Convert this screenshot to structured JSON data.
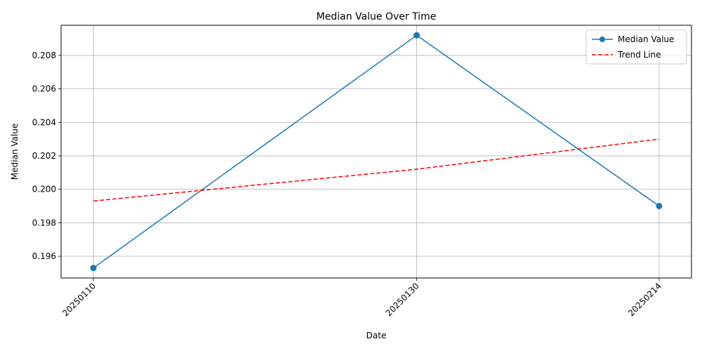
{
  "chart_data": {
    "type": "line",
    "title": "Median Value Over Time",
    "xlabel": "Date",
    "ylabel": "Median Value",
    "x": [
      "20250110",
      "20250130",
      "20250214"
    ],
    "x_days": [
      10,
      30,
      45
    ],
    "xlim_days": [
      8,
      47
    ],
    "ylim": [
      0.1947,
      0.2098
    ],
    "yticks": [
      "0.196",
      "0.198",
      "0.200",
      "0.202",
      "0.204",
      "0.206",
      "0.208"
    ],
    "ytick_values": [
      0.196,
      0.198,
      0.2,
      0.202,
      0.204,
      0.206,
      0.208
    ],
    "grid": true,
    "legend_position": "top-right",
    "series": [
      {
        "name": "Median Value",
        "values": [
          0.1953,
          0.2092,
          0.199
        ],
        "color": "#1f77b4",
        "style": "solid",
        "marker": "circle"
      },
      {
        "name": "Trend Line",
        "values": [
          0.1993,
          0.2012,
          0.203
        ],
        "color": "#ff0000",
        "style": "dashed",
        "marker": "none"
      }
    ]
  }
}
